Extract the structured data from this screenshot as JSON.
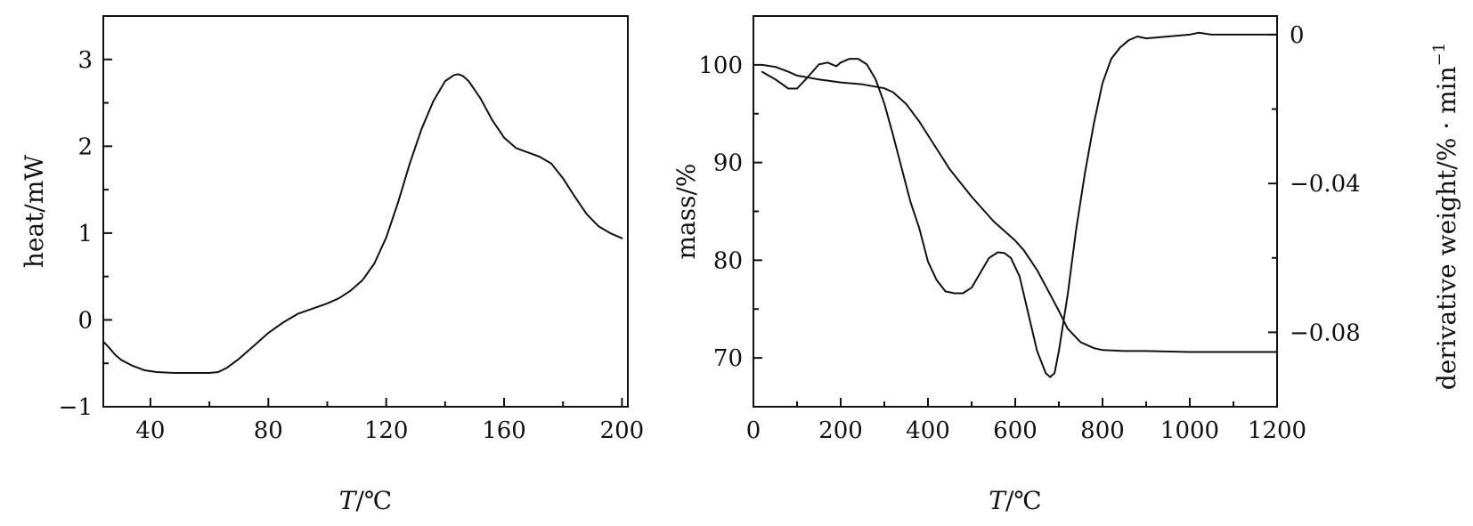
{
  "chart_data": [
    {
      "type": "line",
      "id": "dsc",
      "xlabel_var": "T",
      "xlabel_unit": "/℃",
      "ylabel": "heat/mW",
      "xlim": [
        24,
        202
      ],
      "ylim": [
        -1,
        3.5
      ],
      "xticks": [
        40,
        80,
        120,
        160,
        200
      ],
      "xticks_minor": [
        60,
        100,
        140,
        180
      ],
      "yticks": [
        -1,
        0,
        1,
        2,
        3
      ],
      "yticks_minor": [
        -0.5,
        0.5,
        1.5,
        2.5
      ],
      "grid": false,
      "series": [
        {
          "color": "#111111",
          "x": [
            24,
            26,
            28,
            30,
            34,
            38,
            42,
            48,
            55,
            60,
            63,
            66,
            70,
            75,
            80,
            85,
            90,
            95,
            100,
            104,
            108,
            112,
            116,
            120,
            124,
            128,
            132,
            136,
            140,
            143,
            144.5,
            146,
            148,
            152,
            156,
            160,
            164,
            168,
            172,
            176,
            180,
            184,
            188,
            192,
            196,
            200
          ],
          "y": [
            -0.25,
            -0.32,
            -0.4,
            -0.46,
            -0.53,
            -0.58,
            -0.6,
            -0.61,
            -0.61,
            -0.61,
            -0.6,
            -0.55,
            -0.45,
            -0.3,
            -0.15,
            -0.03,
            0.07,
            0.13,
            0.19,
            0.25,
            0.34,
            0.46,
            0.65,
            0.95,
            1.35,
            1.8,
            2.2,
            2.52,
            2.75,
            2.82,
            2.83,
            2.81,
            2.75,
            2.55,
            2.3,
            2.1,
            1.98,
            1.93,
            1.88,
            1.8,
            1.63,
            1.42,
            1.22,
            1.08,
            1.0,
            0.94
          ]
        }
      ]
    },
    {
      "type": "line",
      "id": "tga",
      "xlabel_var": "T",
      "xlabel_unit": "/℃",
      "ylabel": "mass/%",
      "ylabel2": "derivative weight/% · min",
      "ylabel2_sup": "−1",
      "xlim": [
        0,
        1200
      ],
      "ylim": [
        65,
        105
      ],
      "ylim2": [
        -0.1,
        0.005
      ],
      "xticks": [
        0,
        200,
        400,
        600,
        800,
        1000,
        1200
      ],
      "xticks_minor": [
        100,
        300,
        500,
        700,
        900,
        1100
      ],
      "yticks": [
        70,
        80,
        90,
        100
      ],
      "yticks_minor": [
        75,
        85,
        95
      ],
      "yticks2": [
        0,
        -0.04,
        -0.08
      ],
      "yticks2_labels": [
        "0",
        "−0.04",
        "−0.08"
      ],
      "yticks2_minor": [
        -0.02,
        -0.06
      ],
      "grid": false,
      "series": [
        {
          "axis": "left",
          "color": "#111111",
          "x": [
            20,
            50,
            80,
            100,
            150,
            200,
            250,
            300,
            320,
            350,
            380,
            400,
            450,
            500,
            550,
            600,
            620,
            650,
            680,
            700,
            720,
            750,
            780,
            800,
            850,
            900,
            1000,
            1100,
            1200
          ],
          "y": [
            100,
            99.8,
            99.3,
            98.9,
            98.5,
            98.2,
            98.0,
            97.6,
            97.2,
            96.0,
            94.2,
            92.8,
            89.3,
            86.5,
            84.0,
            82.0,
            81.0,
            79.0,
            76.5,
            74.8,
            73.0,
            71.6,
            71.0,
            70.8,
            70.7,
            70.7,
            70.6,
            70.6,
            70.6
          ]
        },
        {
          "axis": "right",
          "color": "#111111",
          "x": [
            20,
            50,
            80,
            100,
            120,
            150,
            170,
            190,
            200,
            220,
            240,
            260,
            280,
            300,
            320,
            340,
            360,
            380,
            400,
            420,
            440,
            460,
            480,
            500,
            520,
            540,
            560,
            575,
            590,
            610,
            630,
            650,
            670,
            680,
            690,
            700,
            720,
            740,
            760,
            780,
            800,
            820,
            840,
            860,
            880,
            900,
            950,
            1000,
            1020,
            1050,
            1100,
            1200
          ],
          "y": [
            -0.01,
            -0.012,
            -0.0145,
            -0.0145,
            -0.012,
            -0.008,
            -0.0075,
            -0.0085,
            -0.0075,
            -0.0065,
            -0.0065,
            -0.008,
            -0.012,
            -0.0185,
            -0.027,
            -0.036,
            -0.045,
            -0.052,
            -0.061,
            -0.066,
            -0.069,
            -0.0695,
            -0.0695,
            -0.068,
            -0.064,
            -0.06,
            -0.0585,
            -0.0587,
            -0.06,
            -0.065,
            -0.075,
            -0.085,
            -0.091,
            -0.092,
            -0.091,
            -0.085,
            -0.07,
            -0.052,
            -0.037,
            -0.024,
            -0.013,
            -0.0065,
            -0.0035,
            -0.0015,
            -0.0005,
            -0.001,
            -0.0005,
            0.0,
            0.0005,
            0.0,
            0.0,
            0.0
          ]
        }
      ]
    }
  ]
}
